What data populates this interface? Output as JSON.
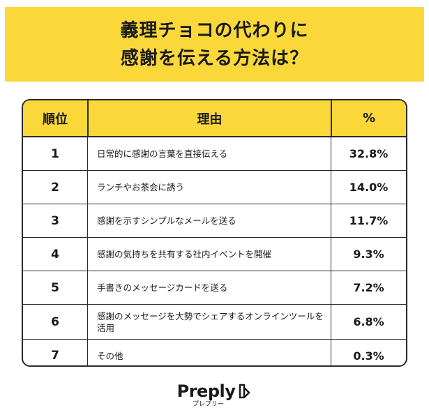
{
  "title": {
    "line1": "義理チョコの代わりに",
    "line2": "感謝を伝える方法は？"
  },
  "table": {
    "headers": {
      "rank": "順位",
      "reason": "理由",
      "percent": "%"
    }
  },
  "chart_data": {
    "type": "table",
    "columns": [
      "順位",
      "理由",
      "%"
    ],
    "rows": [
      {
        "rank": "1",
        "reason": "日常的に感謝の言葉を直接伝える",
        "percent": "32.8%",
        "value": 32.8
      },
      {
        "rank": "2",
        "reason": "ランチやお茶会に誘う",
        "percent": "14.0%",
        "value": 14.0
      },
      {
        "rank": "3",
        "reason": "感謝を示すシンプルなメールを送る",
        "percent": "11.7%",
        "value": 11.7
      },
      {
        "rank": "4",
        "reason": "感謝の気持ちを共有する社内イベントを開催",
        "percent": "9.3%",
        "value": 9.3
      },
      {
        "rank": "5",
        "reason": "手書きのメッセージカードを送る",
        "percent": "7.2%",
        "value": 7.2
      },
      {
        "rank": "6",
        "reason": "感謝のメッセージを大勢でシェアするオンラインツールを活用",
        "percent": "6.8%",
        "value": 6.8
      },
      {
        "rank": "7",
        "reason": "その他",
        "percent": "0.3%",
        "value": 0.3
      }
    ]
  },
  "logo": {
    "word": "Preply",
    "sub": "プレプリー",
    "icon": "preply-logo-icon"
  },
  "colors": {
    "accent": "#fbd83a",
    "border": "#2a2a2a",
    "text": "#1a1a1a"
  }
}
